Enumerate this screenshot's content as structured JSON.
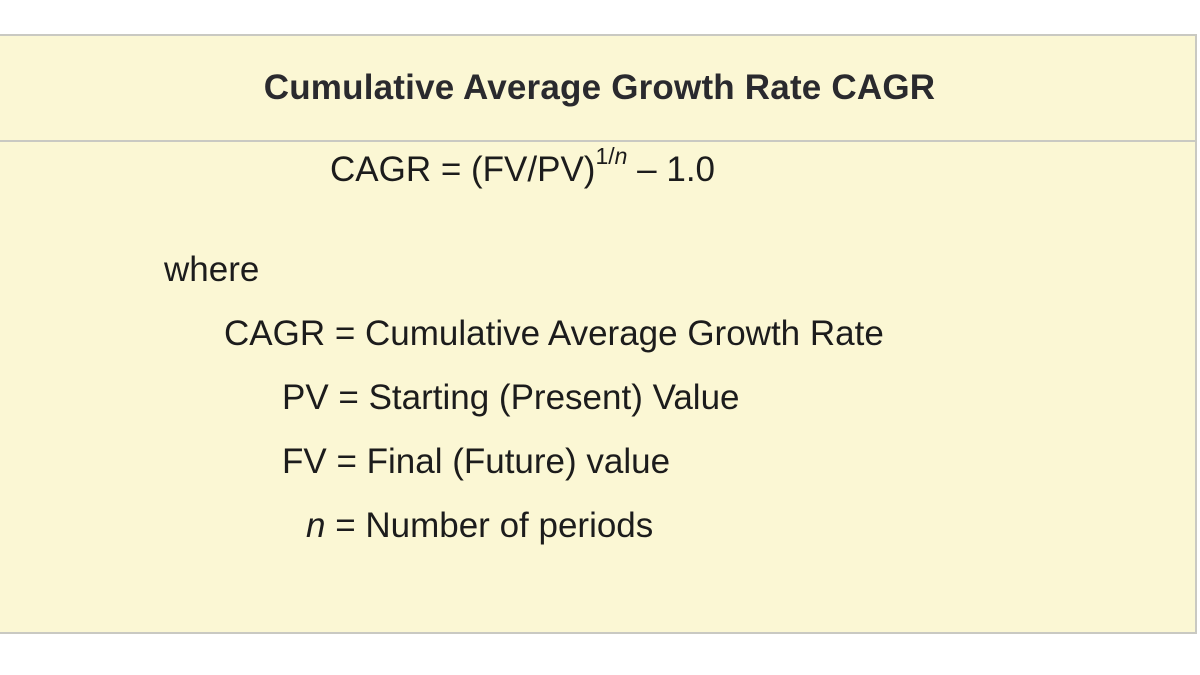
{
  "card": {
    "title": "Cumulative Average Growth Rate CAGR"
  },
  "formula": {
    "lhs": "CAGR = (FV/PV)",
    "exponent_prefix": "1/",
    "exponent_var": "n",
    "rhs": " – 1.0"
  },
  "where_label": "where",
  "definitions": [
    {
      "term": "CAGR",
      "definition": " = Cumulative Average Growth Rate"
    },
    {
      "term": "PV",
      "definition": " = Starting (Present) Value"
    },
    {
      "term": "FV",
      "definition": " = Final (Future) value"
    },
    {
      "term": "n",
      "definition": " = Number of periods"
    }
  ],
  "colors": {
    "card_background": "#fbf7d4",
    "border": "#c9c9c2",
    "title_text": "#2a2a2e",
    "body_text": "#1c1c1c"
  }
}
